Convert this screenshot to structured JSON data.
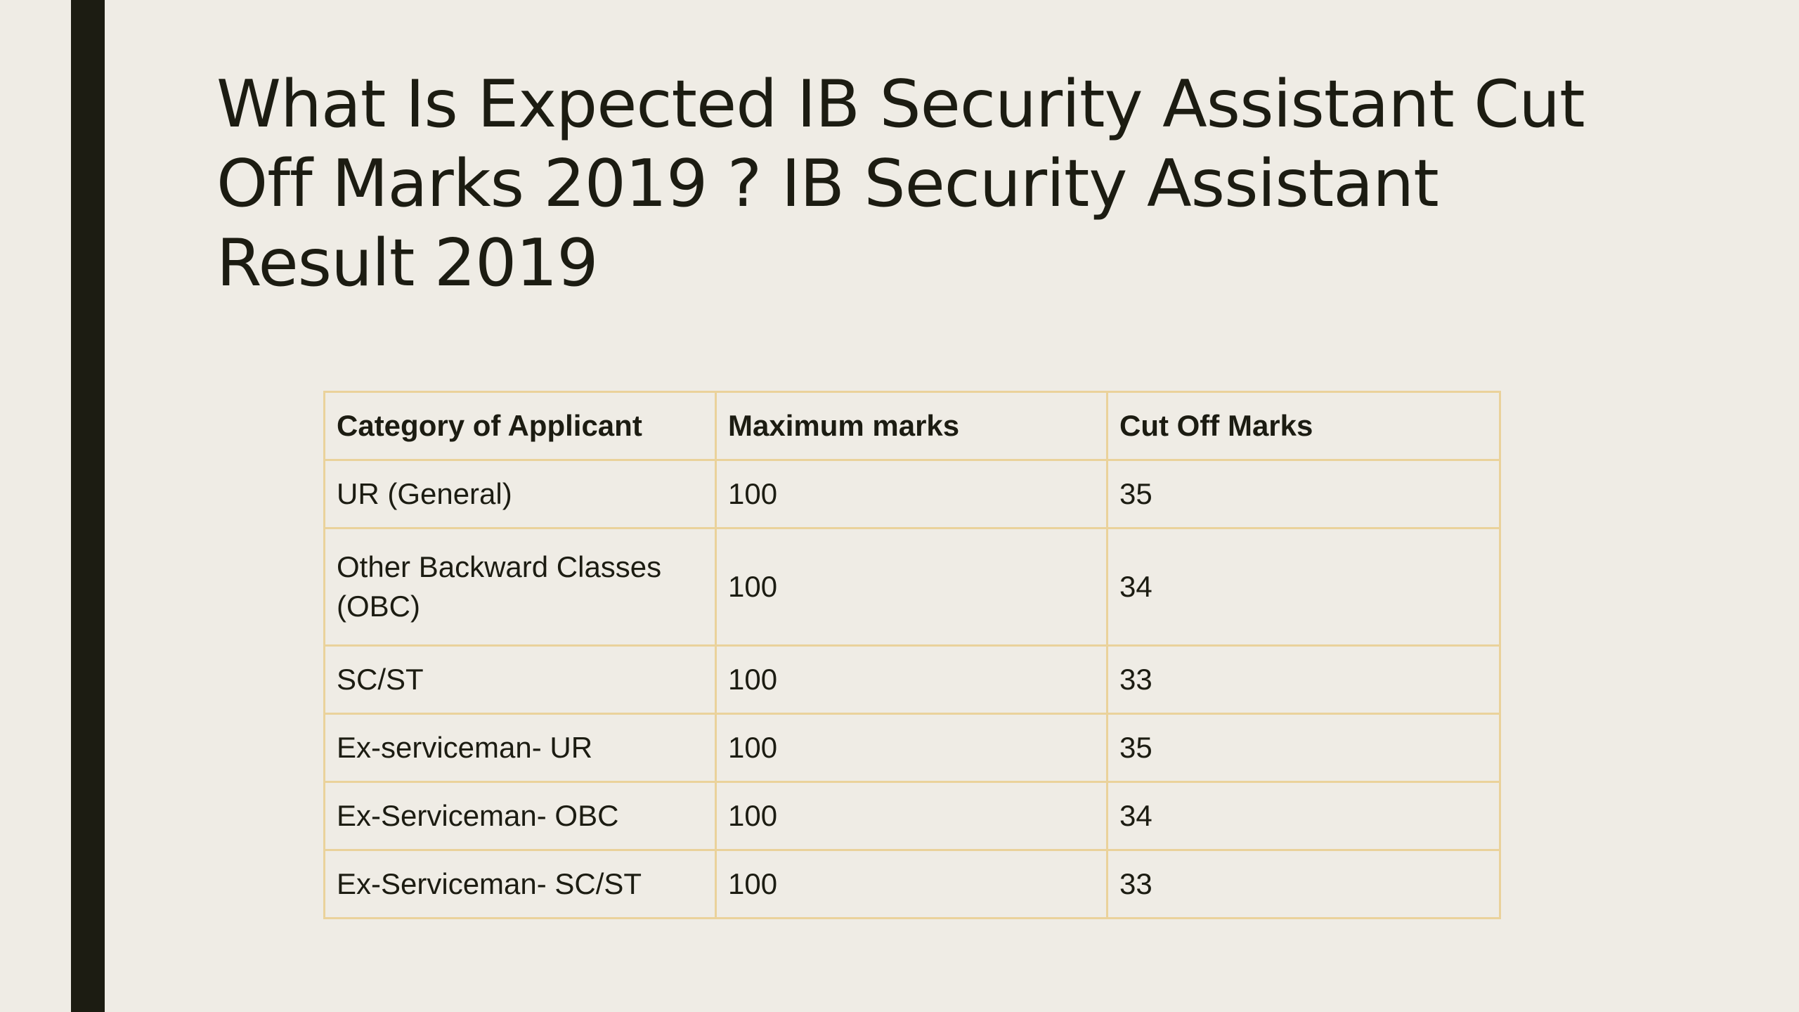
{
  "slide": {
    "title": "What Is Expected IB Security Assistant Cut Off Marks 2019 ? IB Security Assistant Result 2019"
  },
  "table": {
    "headers": [
      "Category of Applicant",
      "Maximum marks",
      "Cut Off Marks"
    ],
    "rows": [
      [
        "UR (General)",
        "100",
        "35"
      ],
      [
        "Other Backward Classes (OBC)",
        "100",
        "34"
      ],
      [
        "SC/ST",
        "100",
        "33"
      ],
      [
        "Ex-serviceman- UR",
        "100",
        "35"
      ],
      [
        "Ex-Serviceman- OBC",
        "100",
        "34"
      ],
      [
        "Ex-Serviceman- SC/ST",
        "100",
        "33"
      ]
    ]
  }
}
